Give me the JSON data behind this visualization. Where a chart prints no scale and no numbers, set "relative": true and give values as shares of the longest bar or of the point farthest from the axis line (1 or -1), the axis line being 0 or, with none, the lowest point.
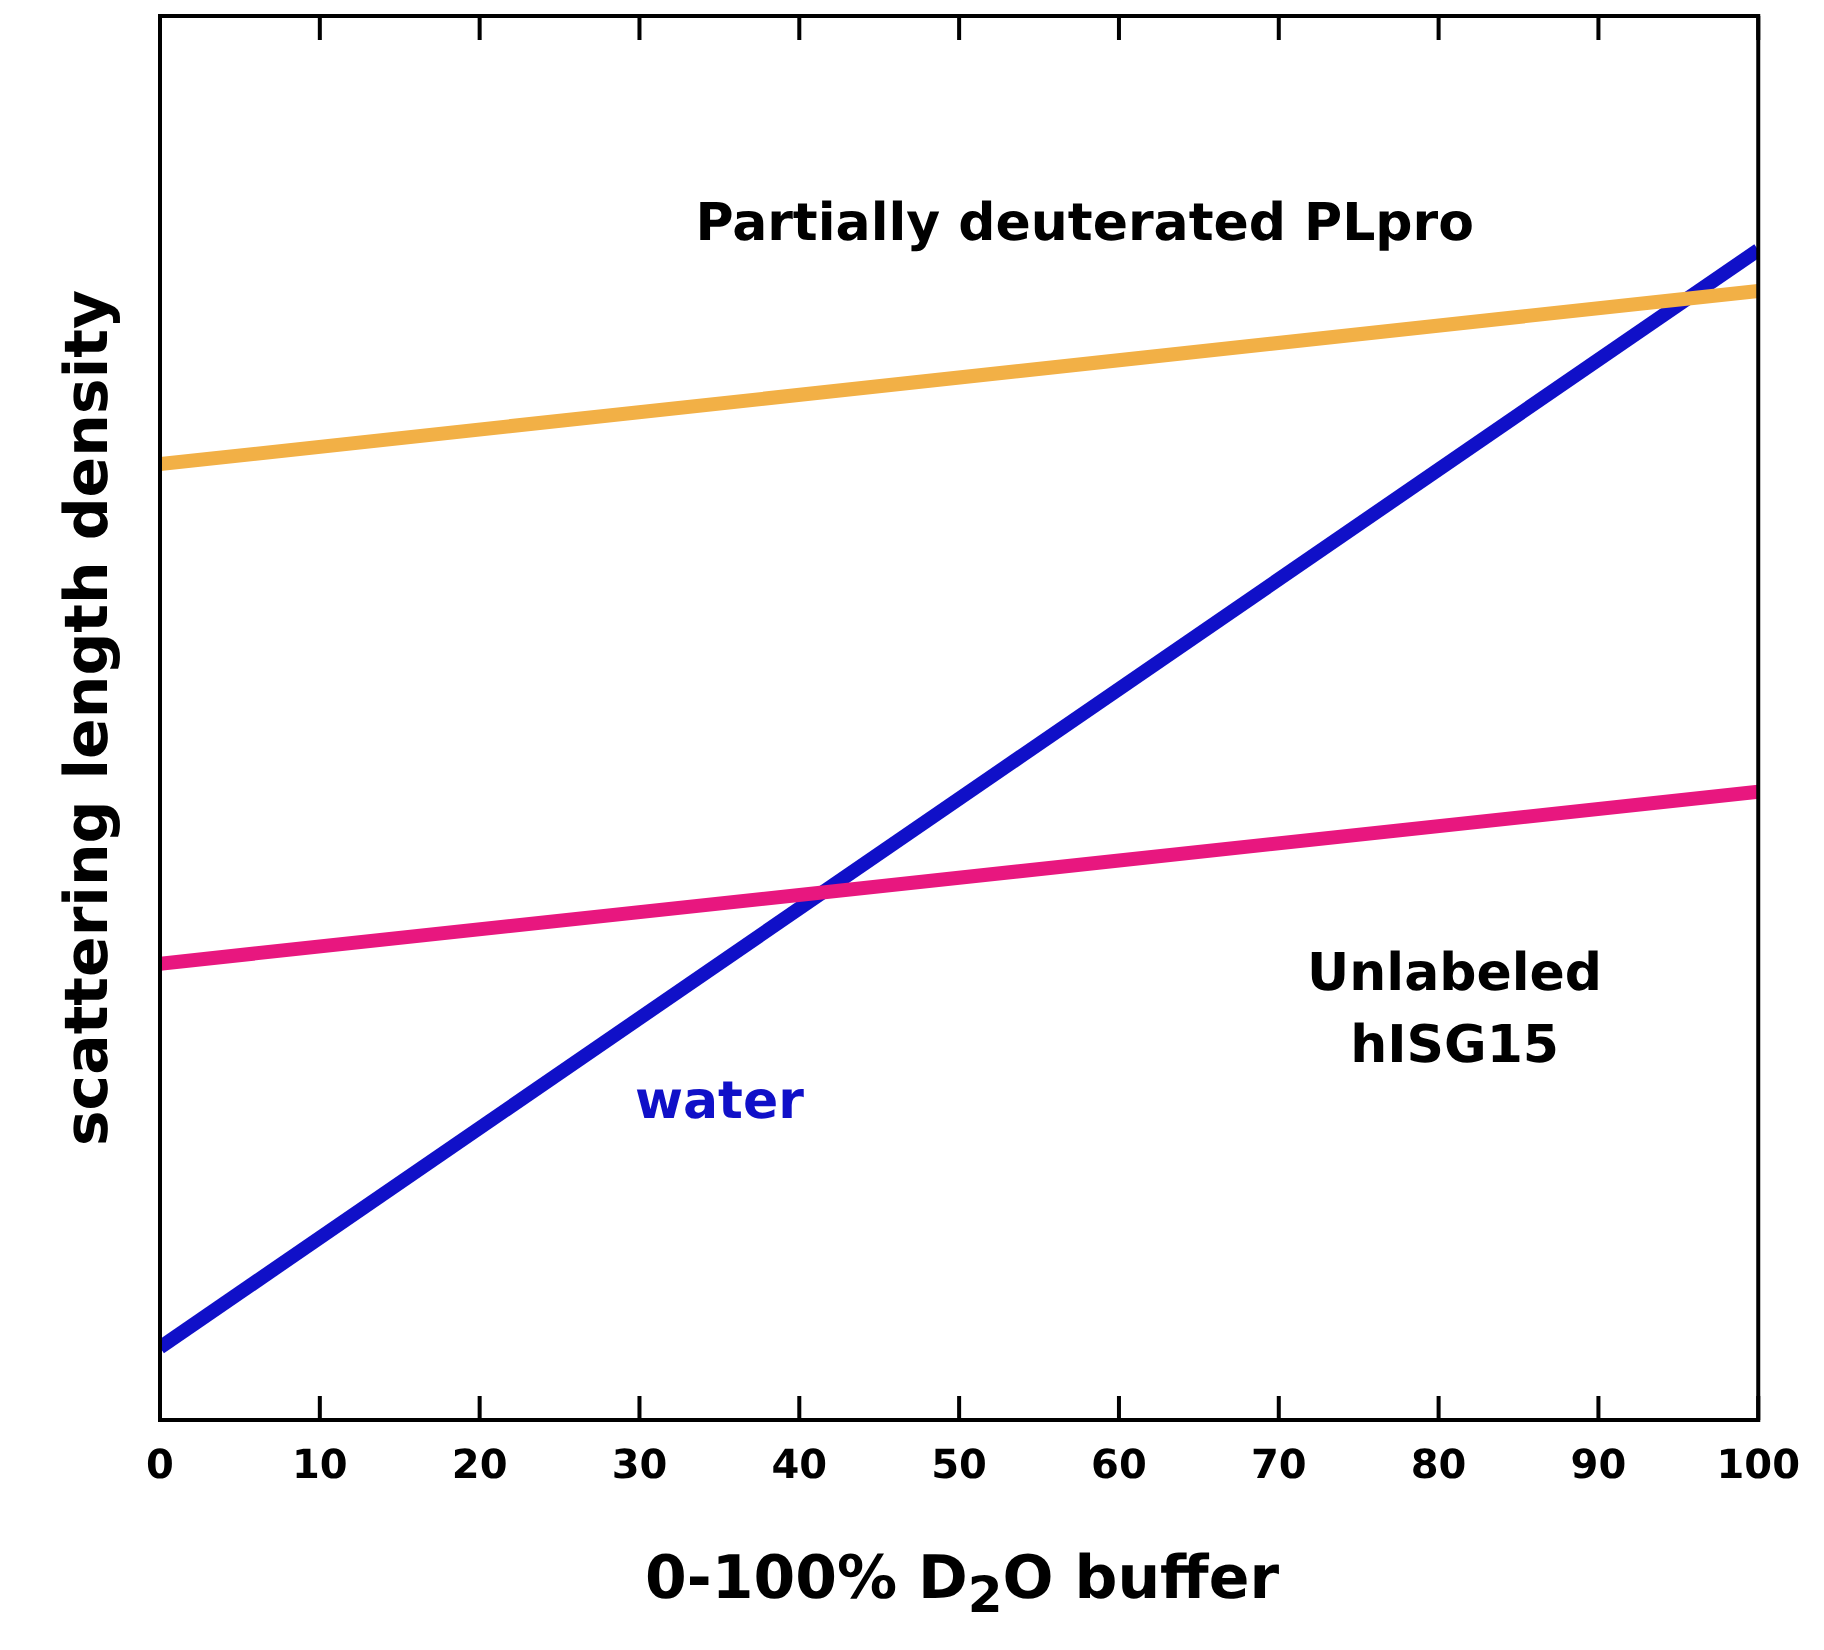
{
  "chart_data": {
    "type": "line",
    "xlabel": "0-100% D$_{2}$O buffer",
    "ylabel": "scattering length density",
    "relative": true,
    "grid": false,
    "legend": false,
    "marker": "none",
    "line_style": "solid",
    "x": [
      0,
      100
    ],
    "xlim": [
      0,
      100
    ],
    "xticks": [
      0,
      10,
      20,
      30,
      40,
      50,
      60,
      70,
      80,
      90,
      100
    ],
    "series": [
      {
        "name": "Partially deuterated PLpro",
        "color": "#f2b046",
        "values": [
          0.817,
          0.965
        ]
      },
      {
        "name": "Unlabeled hISG15",
        "color": "#e8177f",
        "values": [
          0.39,
          0.537
        ]
      },
      {
        "name": "water",
        "color": "#1010c8",
        "values": [
          0.062,
          1
        ]
      }
    ]
  }
}
